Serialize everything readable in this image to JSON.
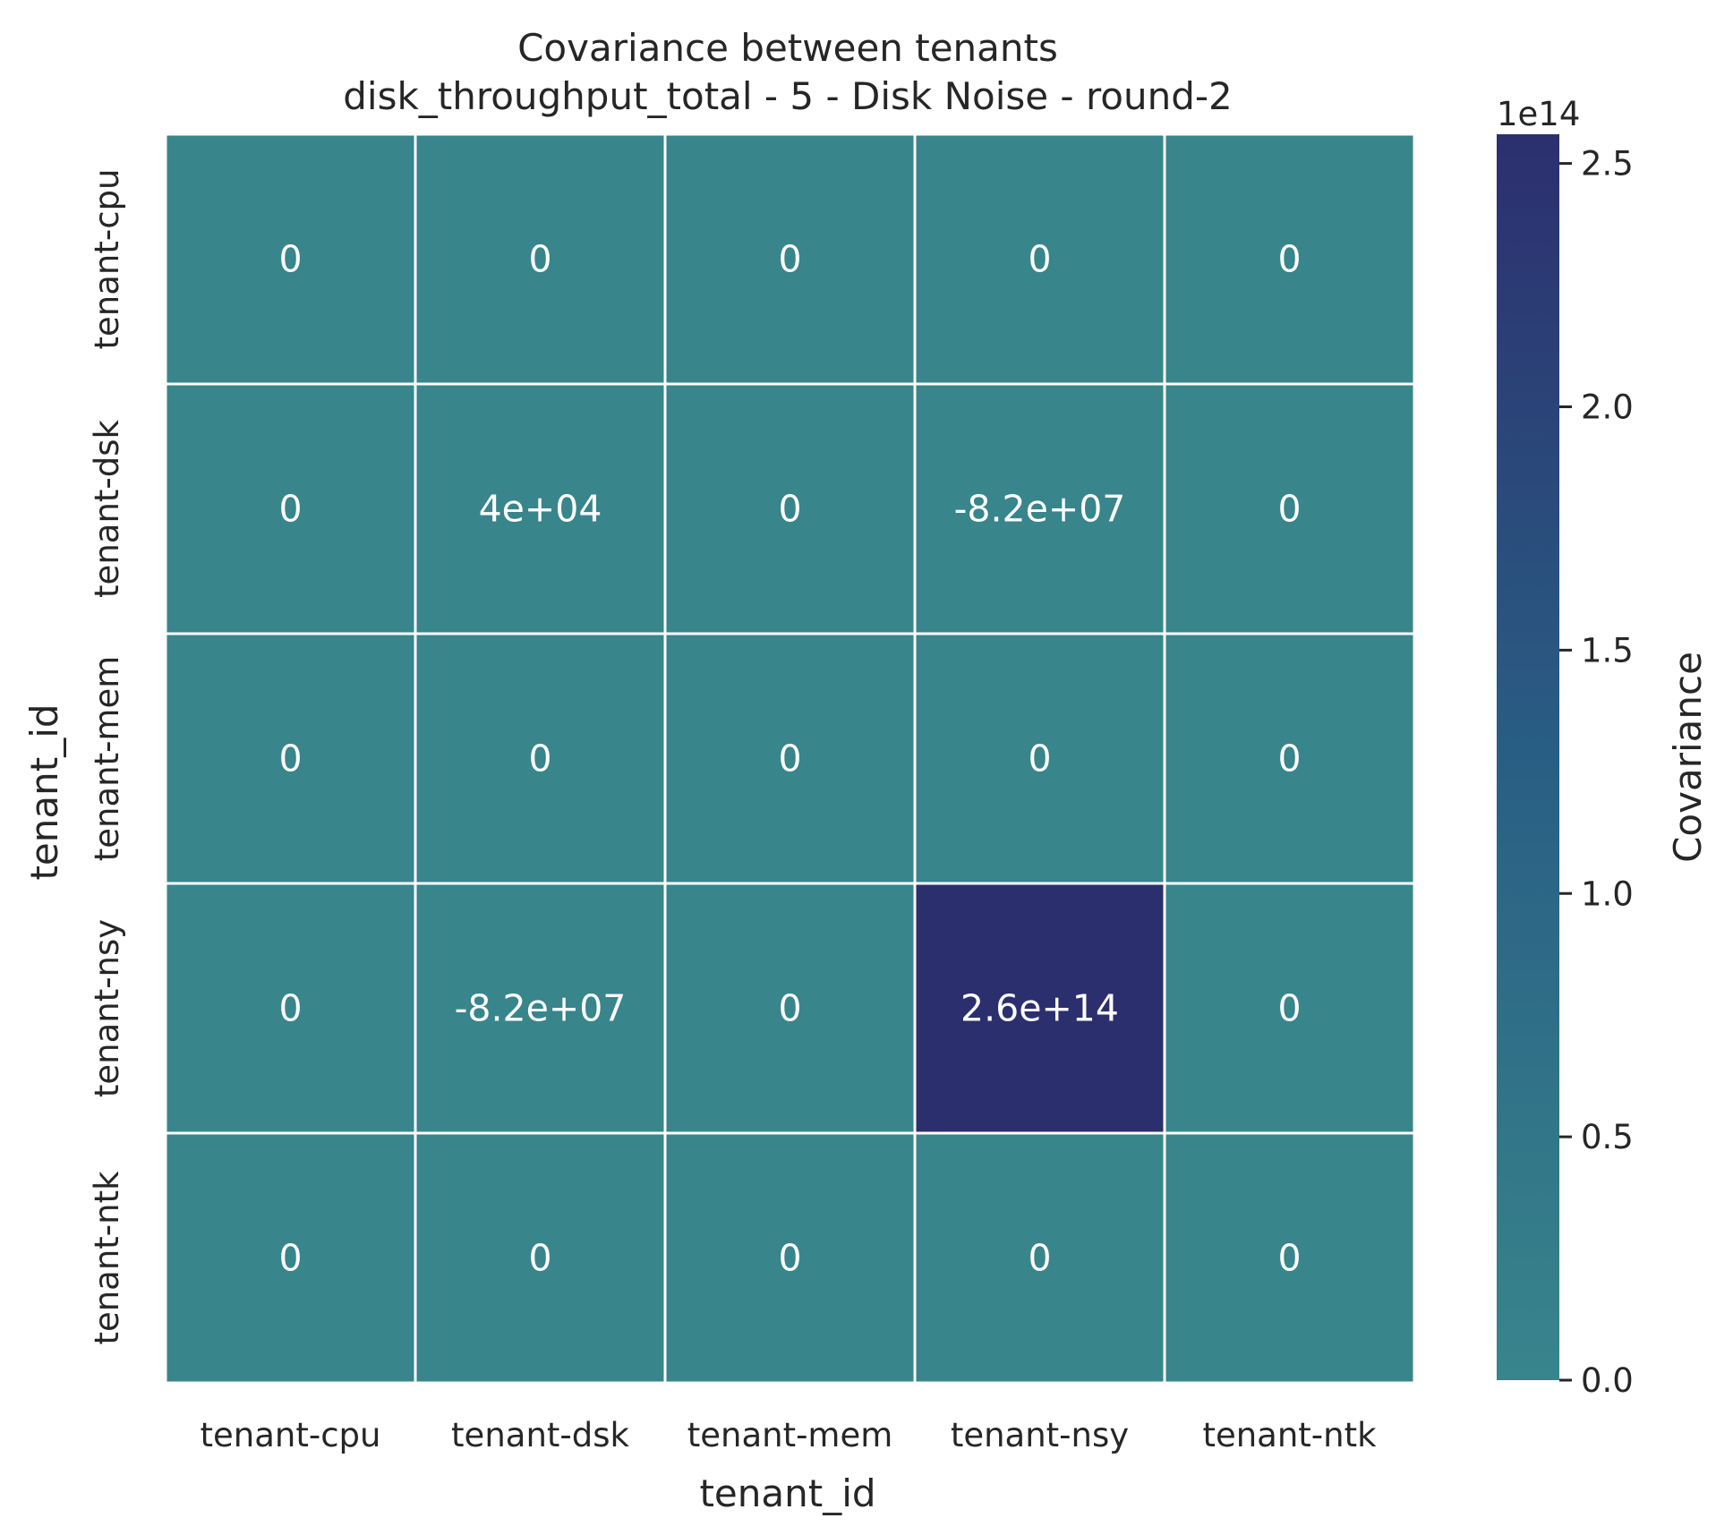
{
  "chart_data": {
    "type": "heatmap",
    "title": "Covariance between tenants",
    "subtitle": "disk_throughput_total - 5 - Disk Noise - round-2",
    "xlabel": "tenant_id",
    "ylabel": "tenant_id",
    "x_categories": [
      "tenant-cpu",
      "tenant-dsk",
      "tenant-mem",
      "tenant-nsy",
      "tenant-ntk"
    ],
    "y_categories": [
      "tenant-cpu",
      "tenant-dsk",
      "tenant-mem",
      "tenant-nsy",
      "tenant-ntk"
    ],
    "values": [
      [
        0,
        0,
        0,
        0,
        0
      ],
      [
        0,
        40000,
        0,
        -82000000,
        0
      ],
      [
        0,
        0,
        0,
        0,
        0
      ],
      [
        0,
        -82000000,
        0,
        260000000000000,
        0
      ],
      [
        0,
        0,
        0,
        0,
        0
      ]
    ],
    "cell_labels": [
      [
        "0",
        "0",
        "0",
        "0",
        "0"
      ],
      [
        "0",
        "4e+04",
        "0",
        "-8.2e+07",
        "0"
      ],
      [
        "0",
        "0",
        "0",
        "0",
        "0"
      ],
      [
        "0",
        "-8.2e+07",
        "0",
        "2.6e+14",
        "0"
      ],
      [
        "0",
        "0",
        "0",
        "0",
        "0"
      ]
    ],
    "colorbar": {
      "label": "Covariance",
      "offset_text": "1e14",
      "range": [
        0,
        256000000000000.0
      ],
      "ticks": [
        0,
        50000000000000.0,
        100000000000000.0,
        150000000000000.0,
        200000000000000.0,
        250000000000000.0
      ],
      "tick_labels": [
        "0.0",
        "0.5",
        "1.0",
        "1.5",
        "2.0",
        "2.5"
      ],
      "color_low": "#38858c",
      "color_high": "#2c2f6e"
    },
    "grid": true
  }
}
